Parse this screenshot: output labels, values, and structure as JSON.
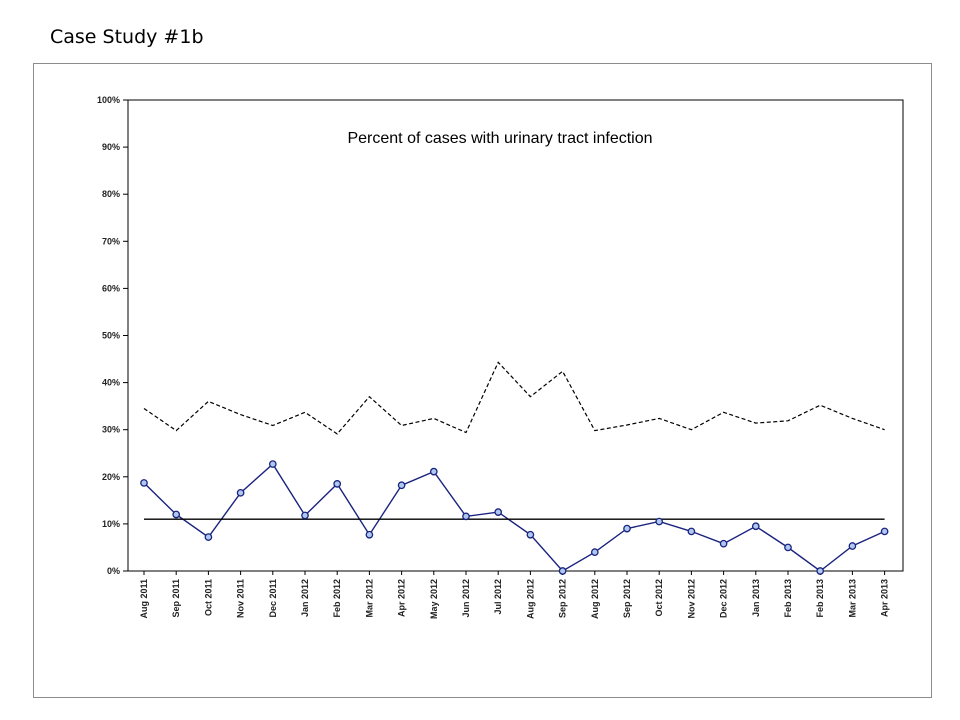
{
  "slide": {
    "title": "Case Study #1b"
  },
  "chart_data": {
    "type": "line",
    "title": "Percent of cases with urinary tract infection",
    "xlabel": "",
    "ylabel": "",
    "ylim": [
      0,
      100
    ],
    "y_tick_labels": [
      "0%",
      "10%",
      "20%",
      "30%",
      "40%",
      "50%",
      "60%",
      "70%",
      "80%",
      "90%",
      "100%"
    ],
    "categories": [
      "Aug 2011",
      "Sep 2011",
      "Oct 2011",
      "Nov 2011",
      "Dec 2011",
      "Jan 2012",
      "Feb 2012",
      "Mar 2012",
      "Apr 2012",
      "May 2012",
      "Jun 2012",
      "Jul 2012",
      "Aug 2012",
      "Sep 2012",
      "Aug 2012",
      "Sep 2012",
      "Oct 2012",
      "Nov 2012",
      "Dec 2012",
      "Jan 2013",
      "Feb 2013",
      "Feb 2013",
      "Mar 2013",
      "Apr 2013"
    ],
    "grid": false,
    "legend": "none",
    "colors": {
      "series": "#1a237e",
      "marker_fill": "#aec8f0",
      "limit": "#000000",
      "center": "#000000",
      "frame": "#8c8c8c"
    },
    "series": [
      {
        "values": [
          18.7,
          12,
          7.2,
          16.6,
          22.7,
          11.8,
          18.5,
          7.7,
          18.2,
          21.1,
          11.6,
          12.5,
          7.7,
          0,
          4,
          9,
          10.5,
          8.4,
          5.8,
          9.5,
          5,
          0,
          5.3,
          8.4
        ],
        "style": "solid-markers"
      },
      {
        "values": [
          34.5,
          29.8,
          36,
          33.2,
          30.9,
          33.7,
          29.1,
          37,
          30.9,
          32.4,
          29.4,
          44.3,
          37,
          42.4,
          29.8,
          31,
          32.4,
          30,
          33.7,
          31.4,
          31.9,
          35.2,
          32.4,
          30
        ],
        "style": "dashed"
      },
      {
        "values": [
          11,
          11,
          11,
          11,
          11,
          11,
          11,
          11,
          11,
          11,
          11,
          11,
          11,
          11,
          11,
          11,
          11,
          11,
          11,
          11,
          11,
          11,
          11,
          11
        ],
        "style": "solid-line"
      }
    ]
  }
}
